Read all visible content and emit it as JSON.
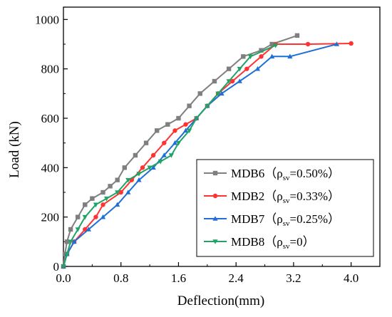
{
  "chart_data": {
    "type": "line",
    "xlabel": "Deflection(mm)",
    "ylabel": "Load (kN)",
    "xlim": [
      0,
      4.4
    ],
    "ylim": [
      0,
      1050
    ],
    "x_ticks": [
      "0.0",
      "0.8",
      "1.6",
      "2.4",
      "3.2",
      "4.0"
    ],
    "y_ticks": [
      "0",
      "200",
      "400",
      "600",
      "800",
      "1000"
    ],
    "grid": false,
    "legend_position": "bottom-right",
    "series": [
      {
        "name": "MDB6（ρsv=0.50%）",
        "legend_main": "MDB6（ρ",
        "legend_sub": "sv",
        "legend_tail": "=0.50%）",
        "color": "#7f7f7f",
        "marker": "square",
        "points": [
          [
            0,
            0
          ],
          [
            0.02,
            50
          ],
          [
            0.05,
            100
          ],
          [
            0.1,
            150
          ],
          [
            0.2,
            200
          ],
          [
            0.3,
            250
          ],
          [
            0.4,
            275
          ],
          [
            0.55,
            300
          ],
          [
            0.65,
            325
          ],
          [
            0.75,
            350
          ],
          [
            0.85,
            400
          ],
          [
            1.0,
            450
          ],
          [
            1.15,
            500
          ],
          [
            1.3,
            550
          ],
          [
            1.45,
            575
          ],
          [
            1.6,
            600
          ],
          [
            1.75,
            650
          ],
          [
            1.9,
            700
          ],
          [
            2.1,
            750
          ],
          [
            2.3,
            800
          ],
          [
            2.5,
            850
          ],
          [
            2.75,
            875
          ],
          [
            2.9,
            900
          ],
          [
            3.25,
            935
          ]
        ]
      },
      {
        "name": "MDB2（ρsv=0.33%）",
        "legend_main": "MDB2（ρ",
        "legend_sub": "sv",
        "legend_tail": "=0.33%）",
        "color": "#ff3333",
        "marker": "circle",
        "points": [
          [
            0,
            0
          ],
          [
            0.05,
            50
          ],
          [
            0.15,
            100
          ],
          [
            0.3,
            150
          ],
          [
            0.45,
            200
          ],
          [
            0.55,
            250
          ],
          [
            0.8,
            300
          ],
          [
            0.95,
            350
          ],
          [
            1.1,
            400
          ],
          [
            1.25,
            450
          ],
          [
            1.4,
            500
          ],
          [
            1.55,
            550
          ],
          [
            1.7,
            575
          ],
          [
            1.85,
            600
          ],
          [
            2.0,
            650
          ],
          [
            2.15,
            700
          ],
          [
            2.35,
            750
          ],
          [
            2.55,
            800
          ],
          [
            2.75,
            850
          ],
          [
            2.95,
            900
          ],
          [
            3.4,
            900
          ],
          [
            4.0,
            903
          ]
        ]
      },
      {
        "name": "MDB7（ρsv=0.25%）",
        "legend_main": "MDB7（ρ",
        "legend_sub": "sv",
        "legend_tail": "=0.25%）",
        "color": "#1f6fd6",
        "marker": "triangle-up",
        "points": [
          [
            0,
            0
          ],
          [
            0.05,
            50
          ],
          [
            0.15,
            100
          ],
          [
            0.35,
            150
          ],
          [
            0.55,
            200
          ],
          [
            0.75,
            250
          ],
          [
            0.9,
            300
          ],
          [
            1.05,
            350
          ],
          [
            1.25,
            400
          ],
          [
            1.4,
            450
          ],
          [
            1.55,
            500
          ],
          [
            1.7,
            550
          ],
          [
            1.85,
            600
          ],
          [
            2.0,
            650
          ],
          [
            2.2,
            700
          ],
          [
            2.45,
            750
          ],
          [
            2.7,
            800
          ],
          [
            2.9,
            850
          ],
          [
            3.15,
            850
          ],
          [
            3.8,
            900
          ]
        ]
      },
      {
        "name": "MDB8（ρsv=0）",
        "legend_main": "MDB8（ρ",
        "legend_sub": "sv",
        "legend_tail": "=0）",
        "color": "#21a366",
        "marker": "triangle-down",
        "points": [
          [
            0,
            0
          ],
          [
            0.05,
            50
          ],
          [
            0.1,
            100
          ],
          [
            0.2,
            150
          ],
          [
            0.3,
            200
          ],
          [
            0.45,
            250
          ],
          [
            0.6,
            275
          ],
          [
            0.75,
            300
          ],
          [
            0.9,
            350
          ],
          [
            1.05,
            375
          ],
          [
            1.2,
            400
          ],
          [
            1.35,
            425
          ],
          [
            1.5,
            450
          ],
          [
            1.6,
            500
          ],
          [
            1.75,
            550
          ],
          [
            1.85,
            600
          ],
          [
            2.0,
            650
          ],
          [
            2.15,
            700
          ],
          [
            2.3,
            750
          ],
          [
            2.45,
            800
          ],
          [
            2.6,
            850
          ],
          [
            2.95,
            895
          ]
        ]
      }
    ]
  }
}
